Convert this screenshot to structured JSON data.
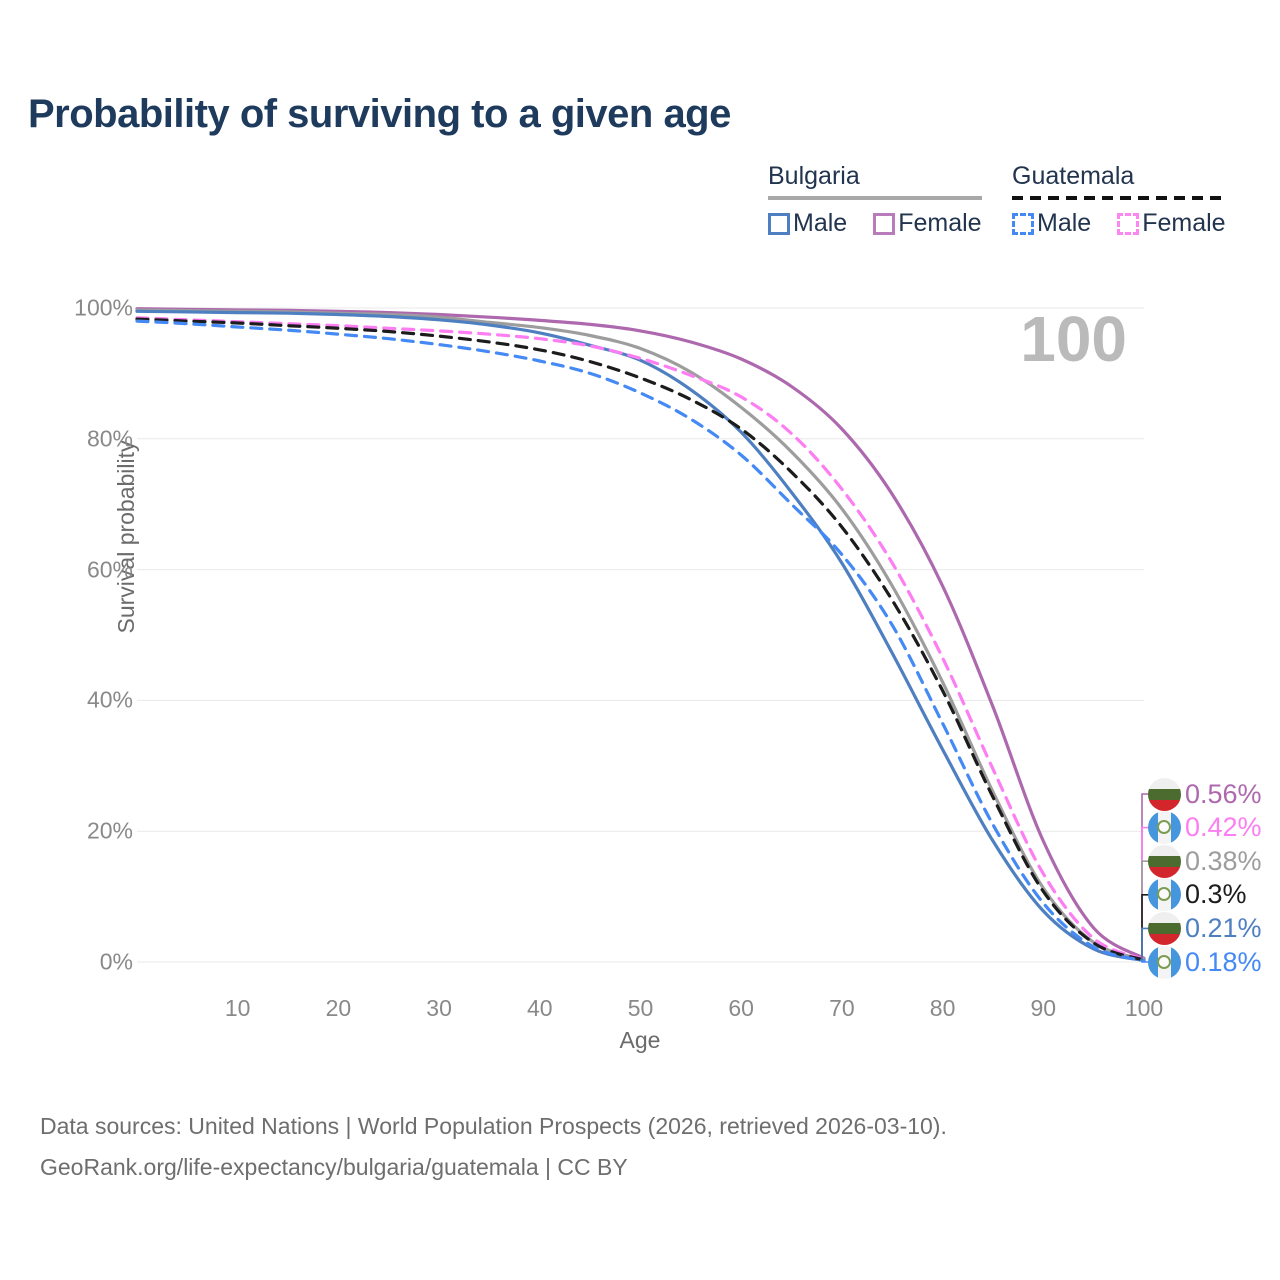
{
  "title": "Probability of surviving to a given age",
  "watermark": "100",
  "legend": {
    "groups": [
      {
        "label": "Bulgaria",
        "underline_style": "solid",
        "underline_color": "#a8a8a8",
        "items": [
          {
            "label": "Male",
            "color": "#4e7fc1",
            "dash": false
          },
          {
            "label": "Female",
            "color": "#b87cba",
            "dash": false
          }
        ]
      },
      {
        "label": "Guatemala",
        "underline_style": "dashed",
        "underline_color": "#111111",
        "items": [
          {
            "label": "Male",
            "color": "#4489f4",
            "dash": true
          },
          {
            "label": "Female",
            "color": "#fd87f1",
            "dash": true
          }
        ]
      }
    ]
  },
  "chart_data": {
    "type": "line",
    "title": "Probability of surviving to a given age",
    "xlabel": "Age",
    "ylabel": "Survival probability",
    "xlim": [
      0,
      100
    ],
    "ylim": [
      0,
      100
    ],
    "grid": "horizontal",
    "legend_position": "top-right",
    "x_ticks": [
      10,
      20,
      30,
      40,
      50,
      60,
      70,
      80,
      90,
      100
    ],
    "y_ticks": [
      {
        "value": 0,
        "label": "0%"
      },
      {
        "value": 20,
        "label": "20%"
      },
      {
        "value": 40,
        "label": "40%"
      },
      {
        "value": 60,
        "label": "60%"
      },
      {
        "value": 80,
        "label": "80%"
      },
      {
        "value": 100,
        "label": "100%"
      }
    ],
    "x": [
      0,
      5,
      10,
      15,
      20,
      25,
      30,
      35,
      40,
      45,
      50,
      55,
      60,
      65,
      70,
      75,
      80,
      85,
      90,
      95,
      100
    ],
    "series": [
      {
        "name": "Bulgaria Female",
        "country": "Bulgaria",
        "sex": "Female",
        "line": "solid",
        "color": "#ad68ae",
        "end_label": "0.56%",
        "values": [
          99.9,
          99.8,
          99.7,
          99.65,
          99.5,
          99.3,
          99.0,
          98.6,
          98.1,
          97.5,
          96.5,
          94.8,
          92.2,
          88.0,
          81.5,
          71.5,
          57.5,
          39.0,
          18.5,
          5.2,
          0.56
        ]
      },
      {
        "name": "Guatemala Female",
        "country": "Guatemala",
        "sex": "Female",
        "line": "dashed",
        "color": "#fd7df2",
        "end_label": "0.42%",
        "values": [
          98.5,
          98.2,
          97.9,
          97.6,
          97.3,
          96.9,
          96.5,
          96.0,
          95.3,
          94.2,
          92.3,
          89.7,
          86.4,
          80.8,
          72.3,
          61.0,
          46.5,
          29.5,
          13.5,
          3.6,
          0.42
        ]
      },
      {
        "name": "Bulgaria",
        "country": "Bulgaria",
        "sex": "Both",
        "line": "solid",
        "color": "#9d9d9d",
        "end_label": "0.38%",
        "values": [
          99.7,
          99.6,
          99.5,
          99.4,
          99.2,
          99.0,
          98.6,
          97.8,
          97.0,
          95.8,
          93.8,
          90.2,
          84.8,
          78.0,
          69.3,
          57.5,
          42.8,
          26.0,
          11.3,
          3.0,
          0.38
        ]
      },
      {
        "name": "Guatemala",
        "country": "Guatemala",
        "sex": "Both",
        "line": "dashed",
        "color": "#1c1c1c",
        "end_label": "0.3%",
        "values": [
          98.3,
          98.0,
          97.7,
          97.3,
          96.9,
          96.4,
          95.7,
          94.8,
          93.6,
          91.8,
          89.3,
          86.0,
          81.5,
          74.9,
          66.5,
          55.3,
          41.5,
          25.2,
          10.8,
          2.9,
          0.3
        ]
      },
      {
        "name": "Bulgaria Male",
        "country": "Bulgaria",
        "sex": "Male",
        "line": "solid",
        "color": "#4e7fc1",
        "end_label": "0.21%",
        "values": [
          99.5,
          99.4,
          99.3,
          99.2,
          99.0,
          98.7,
          98.2,
          97.4,
          96.2,
          94.3,
          92.0,
          87.5,
          81.0,
          71.8,
          61.0,
          47.2,
          32.5,
          18.5,
          7.8,
          2.0,
          0.21
        ]
      },
      {
        "name": "Guatemala Male",
        "country": "Guatemala",
        "sex": "Male",
        "line": "dashed",
        "color": "#4489f4",
        "end_label": "0.18%",
        "values": [
          98.0,
          97.6,
          97.1,
          96.6,
          96.0,
          95.3,
          94.4,
          93.3,
          91.9,
          90.0,
          87.0,
          83.0,
          77.5,
          70.0,
          62.3,
          51.5,
          36.5,
          21.0,
          9.0,
          2.3,
          0.18
        ]
      }
    ]
  },
  "footer": {
    "line1": "Data sources: United Nations | World Population Prospects (2026, retrieved 2026-03-10).",
    "line2": "GeoRank.org/life-expectancy/bulgaria/guatemala | CC BY"
  }
}
